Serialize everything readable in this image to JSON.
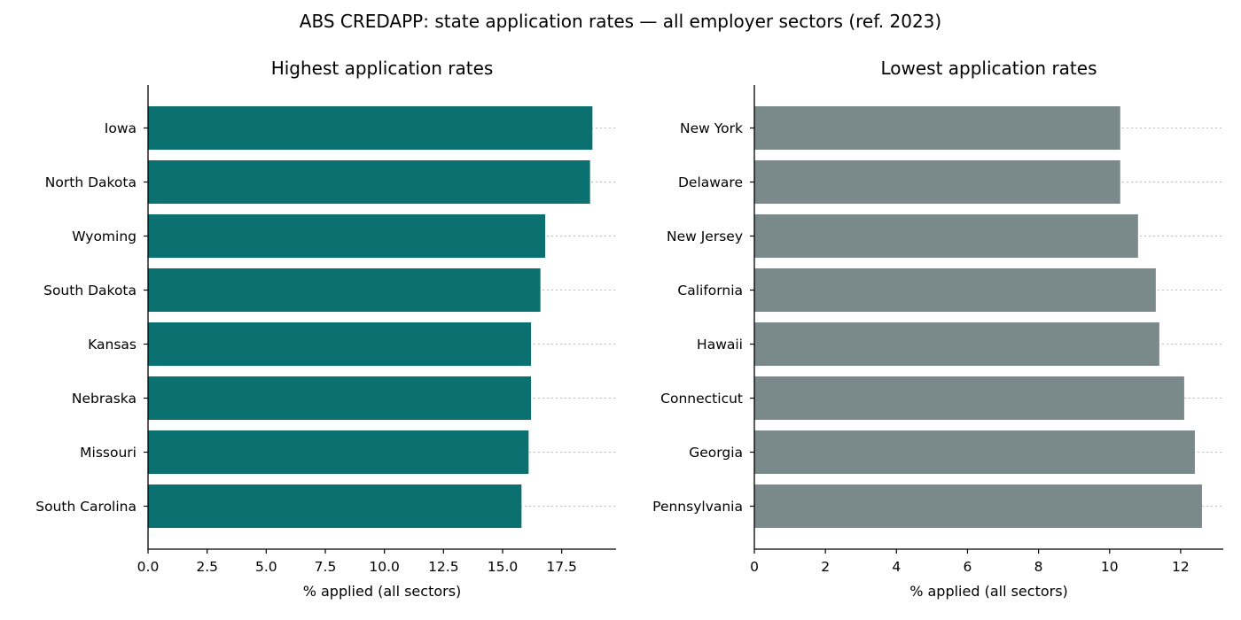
{
  "chart_data": {
    "title": "ABS CREDAPP: state application rates — all employer sectors (ref. 2023)",
    "panels": [
      {
        "type": "bar",
        "orientation": "horizontal",
        "title": "Highest application rates",
        "xlabel": "% applied (all sectors)",
        "xlim": [
          0,
          19.8
        ],
        "xticks": [
          0,
          2.5,
          5,
          7.5,
          10,
          12.5,
          15,
          17.5
        ],
        "xtick_labels": [
          "0.0",
          "2.5",
          "5.0",
          "7.5",
          "10.0",
          "12.5",
          "15.0",
          "17.5"
        ],
        "color": "#0a7070",
        "categories": [
          "Iowa",
          "North Dakota",
          "Wyoming",
          "South Dakota",
          "Kansas",
          "Nebraska",
          "Missouri",
          "South Carolina"
        ],
        "values": [
          18.8,
          18.7,
          16.8,
          16.6,
          16.2,
          16.2,
          16.1,
          15.8
        ],
        "grid": "dotted horizontal at each bar"
      },
      {
        "type": "bar",
        "orientation": "horizontal",
        "title": "Lowest application rates",
        "xlabel": "% applied (all sectors)",
        "xlim": [
          0,
          13.2
        ],
        "xticks": [
          0,
          2,
          4,
          6,
          8,
          10,
          12
        ],
        "xtick_labels": [
          "0",
          "2",
          "4",
          "6",
          "8",
          "10",
          "12"
        ],
        "color": "#7a8a8a",
        "categories": [
          "New York",
          "Delaware",
          "New Jersey",
          "California",
          "Hawaii",
          "Connecticut",
          "Georgia",
          "Pennsylvania"
        ],
        "values": [
          10.3,
          10.3,
          10.8,
          11.3,
          11.4,
          12.1,
          12.4,
          12.6
        ],
        "grid": "dotted horizontal at each bar"
      }
    ]
  }
}
